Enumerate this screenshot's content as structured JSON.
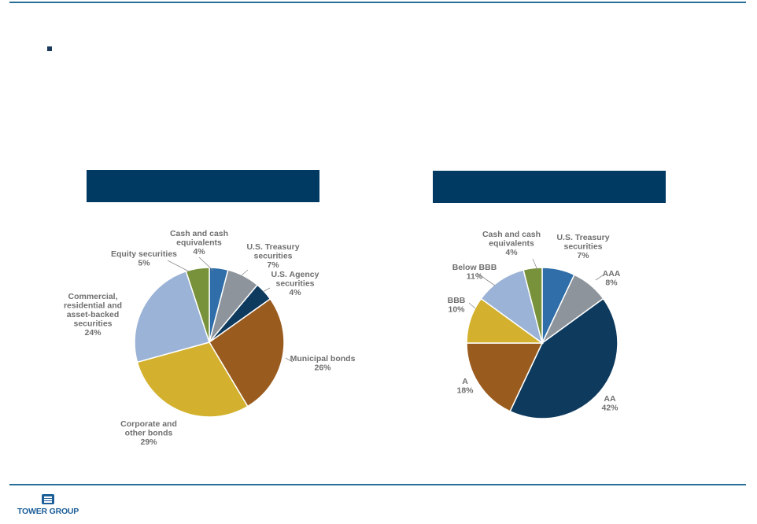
{
  "colors": {
    "rule": "#2a6f97",
    "header": "#003a63",
    "label": "#6f6f6f",
    "brand": "#1b5e98"
  },
  "footer": {
    "brand_name": "TOWER GROUP"
  },
  "chart_data": [
    {
      "type": "pie",
      "slices": [
        {
          "lines": [
            "Cash and cash",
            "equivalents"
          ],
          "pct": "4%",
          "value": 4,
          "color": "#2f6ea8"
        },
        {
          "lines": [
            "U.S. Treasury",
            "securities"
          ],
          "pct": "7%",
          "value": 7,
          "color": "#8d949b"
        },
        {
          "lines": [
            "U.S. Agency",
            "securities"
          ],
          "pct": "4%",
          "value": 4,
          "color": "#0e3a5e"
        },
        {
          "lines": [
            "Municipal bonds"
          ],
          "pct": "26%",
          "value": 26,
          "color": "#9a5b1f"
        },
        {
          "lines": [
            "Corporate and",
            "other bonds"
          ],
          "pct": "29%",
          "value": 29,
          "color": "#d3b12e"
        },
        {
          "lines": [
            "Commercial,",
            "residential and",
            "asset-backed",
            "securities"
          ],
          "pct": "24%",
          "value": 24,
          "color": "#9bb3d6"
        },
        {
          "lines": [
            "Equity securities"
          ],
          "pct": "5%",
          "value": 5,
          "color": "#78923b"
        }
      ]
    },
    {
      "type": "pie",
      "slices": [
        {
          "lines": [
            "U.S. Treasury",
            "securities"
          ],
          "pct": "7%",
          "value": 7,
          "color": "#2f6ea8"
        },
        {
          "lines": [
            "AAA"
          ],
          "pct": "8%",
          "value": 8,
          "color": "#8d949b"
        },
        {
          "lines": [
            "AA"
          ],
          "pct": "42%",
          "value": 42,
          "color": "#0e3a5e"
        },
        {
          "lines": [
            "A"
          ],
          "pct": "18%",
          "value": 18,
          "color": "#9a5b1f"
        },
        {
          "lines": [
            "BBB"
          ],
          "pct": "10%",
          "value": 10,
          "color": "#d3b12e"
        },
        {
          "lines": [
            "Below BBB"
          ],
          "pct": "11%",
          "value": 11,
          "color": "#9bb3d6"
        },
        {
          "lines": [
            "Cash and cash",
            "equivalents"
          ],
          "pct": "4%",
          "value": 4,
          "color": "#78923b"
        }
      ]
    }
  ]
}
